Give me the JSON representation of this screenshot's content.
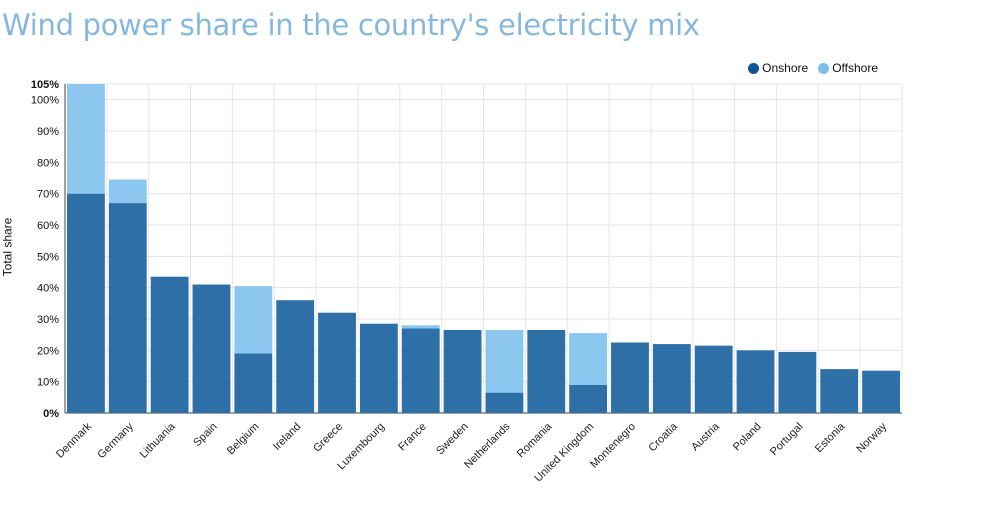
{
  "chart_data": {
    "type": "bar",
    "stacked": true,
    "title": "Wind power share in the country's electricity mix",
    "ylabel": "Total share",
    "xlabel": "",
    "ylim": [
      0,
      105
    ],
    "yticks": [
      "0%",
      "10%",
      "20%",
      "30%",
      "40%",
      "50%",
      "60%",
      "70%",
      "80%",
      "90%",
      "100%",
      "105%"
    ],
    "grid": true,
    "legend_position": "top-right",
    "categories": [
      "Denmark",
      "Germany",
      "Lithuania",
      "Spain",
      "Belgium",
      "Ireland",
      "Greece",
      "Luxembourg",
      "France",
      "Sweden",
      "Netherlands",
      "Romania",
      "United Kingdom",
      "Montenegro",
      "Croatia",
      "Austria",
      "Poland",
      "Portugal",
      "Estonia",
      "Norway"
    ],
    "series": [
      {
        "name": "Onshore",
        "color": "#2e6fa8",
        "values": [
          70,
          67,
          43.5,
          41,
          19,
          36,
          32,
          28.5,
          27,
          26.5,
          6.5,
          26.5,
          9,
          22.5,
          22,
          21.5,
          20,
          19.5,
          14,
          13.5
        ]
      },
      {
        "name": "Offshore",
        "color": "#8cc7ef",
        "values": [
          35,
          7.5,
          0,
          0,
          21.5,
          0,
          0,
          0,
          1,
          0,
          20,
          0,
          16.5,
          0,
          0,
          0,
          0,
          0,
          0,
          0
        ]
      }
    ]
  },
  "legend": [
    {
      "label": "Onshore",
      "color": "#0f5596"
    },
    {
      "label": "Offshore",
      "color": "#7cc0ea"
    }
  ]
}
